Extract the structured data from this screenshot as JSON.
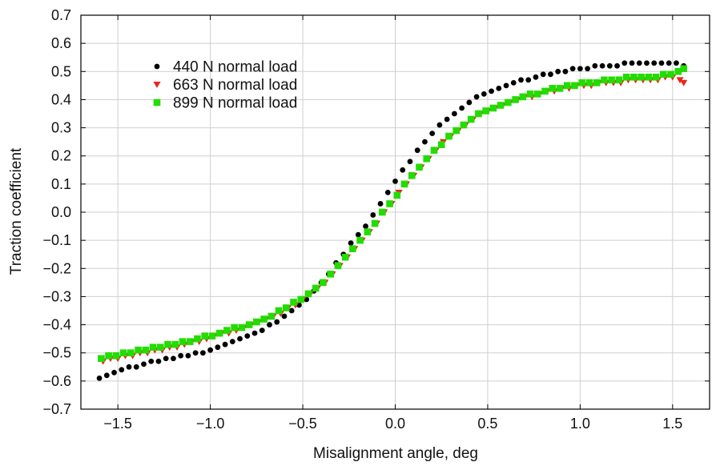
{
  "chart_data": {
    "type": "scatter",
    "title": "",
    "xlabel": "Misalignment angle, deg",
    "ylabel": "Traction coefficient",
    "xlim": [
      -1.7,
      1.7
    ],
    "ylim": [
      -0.7,
      0.7
    ],
    "xticks": [
      -1.5,
      -1.0,
      -0.5,
      0.0,
      0.5,
      1.0,
      1.5
    ],
    "xtick_labels": [
      "−1.5",
      "−1.0",
      "−0.5",
      "0.0",
      "0.5",
      "1.0",
      "1.5"
    ],
    "yticks": [
      -0.7,
      -0.6,
      -0.5,
      -0.4,
      -0.3,
      -0.2,
      -0.1,
      0.0,
      0.1,
      0.2,
      0.3,
      0.4,
      0.5,
      0.6,
      0.7
    ],
    "ytick_labels": [
      "−0.7",
      "−0.6",
      "−0.5",
      "−0.4",
      "−0.3",
      "−0.2",
      "−0.1",
      "0.0",
      "0.1",
      "0.2",
      "0.3",
      "0.4",
      "0.5",
      "0.6",
      "0.7"
    ],
    "grid": true,
    "legend_position": "upper-left",
    "series": [
      {
        "name": "440 N normal load",
        "marker": "circle",
        "color": "#000000",
        "x": [
          -1.6,
          -1.56,
          -1.52,
          -1.48,
          -1.44,
          -1.4,
          -1.36,
          -1.32,
          -1.28,
          -1.24,
          -1.2,
          -1.16,
          -1.12,
          -1.08,
          -1.04,
          -1.0,
          -0.96,
          -0.92,
          -0.88,
          -0.84,
          -0.8,
          -0.76,
          -0.72,
          -0.68,
          -0.64,
          -0.6,
          -0.56,
          -0.52,
          -0.48,
          -0.44,
          -0.4,
          -0.36,
          -0.32,
          -0.28,
          -0.24,
          -0.2,
          -0.16,
          -0.12,
          -0.08,
          -0.04,
          0.0,
          0.04,
          0.08,
          0.12,
          0.16,
          0.2,
          0.24,
          0.28,
          0.32,
          0.36,
          0.4,
          0.44,
          0.48,
          0.52,
          0.56,
          0.6,
          0.64,
          0.68,
          0.72,
          0.76,
          0.8,
          0.84,
          0.88,
          0.92,
          0.96,
          1.0,
          1.04,
          1.08,
          1.12,
          1.16,
          1.2,
          1.24,
          1.28,
          1.32,
          1.36,
          1.4,
          1.44,
          1.48,
          1.52,
          1.56
        ],
        "y": [
          -0.59,
          -0.58,
          -0.57,
          -0.56,
          -0.55,
          -0.55,
          -0.54,
          -0.53,
          -0.53,
          -0.52,
          -0.52,
          -0.51,
          -0.51,
          -0.5,
          -0.5,
          -0.49,
          -0.48,
          -0.47,
          -0.46,
          -0.45,
          -0.44,
          -0.43,
          -0.42,
          -0.4,
          -0.39,
          -0.37,
          -0.35,
          -0.33,
          -0.31,
          -0.28,
          -0.25,
          -0.22,
          -0.18,
          -0.15,
          -0.11,
          -0.08,
          -0.05,
          -0.01,
          0.03,
          0.07,
          0.11,
          0.15,
          0.18,
          0.22,
          0.25,
          0.28,
          0.31,
          0.33,
          0.35,
          0.37,
          0.39,
          0.41,
          0.42,
          0.43,
          0.44,
          0.45,
          0.46,
          0.47,
          0.47,
          0.48,
          0.49,
          0.49,
          0.5,
          0.5,
          0.51,
          0.51,
          0.51,
          0.52,
          0.52,
          0.52,
          0.52,
          0.53,
          0.53,
          0.53,
          0.53,
          0.53,
          0.53,
          0.53,
          0.53,
          0.52
        ]
      },
      {
        "name": "663 N normal load",
        "marker": "triangle-down",
        "color": "#e8281e",
        "x": [
          -1.58,
          -1.54,
          -1.5,
          -1.46,
          -1.42,
          -1.38,
          -1.34,
          -1.3,
          -1.26,
          -1.22,
          -1.18,
          -1.14,
          -1.1,
          -1.06,
          -1.02,
          -0.98,
          -0.94,
          -0.9,
          -0.86,
          -0.82,
          -0.78,
          -0.74,
          -0.7,
          -0.66,
          -0.62,
          -0.58,
          -0.54,
          -0.5,
          -0.46,
          -0.42,
          -0.38,
          -0.34,
          -0.3,
          -0.26,
          -0.22,
          -0.18,
          -0.14,
          -0.1,
          -0.06,
          -0.02,
          0.02,
          0.06,
          0.1,
          0.14,
          0.18,
          0.22,
          0.26,
          0.3,
          0.34,
          0.38,
          0.42,
          0.46,
          0.5,
          0.54,
          0.58,
          0.62,
          0.66,
          0.7,
          0.74,
          0.78,
          0.82,
          0.86,
          0.9,
          0.94,
          0.98,
          1.02,
          1.06,
          1.1,
          1.14,
          1.18,
          1.22,
          1.26,
          1.3,
          1.34,
          1.38,
          1.42,
          1.46,
          1.5,
          1.54,
          1.56
        ],
        "y": [
          -0.53,
          -0.52,
          -0.52,
          -0.51,
          -0.51,
          -0.5,
          -0.5,
          -0.49,
          -0.49,
          -0.48,
          -0.48,
          -0.47,
          -0.46,
          -0.46,
          -0.45,
          -0.44,
          -0.43,
          -0.43,
          -0.42,
          -0.41,
          -0.4,
          -0.39,
          -0.38,
          -0.37,
          -0.36,
          -0.34,
          -0.33,
          -0.31,
          -0.29,
          -0.27,
          -0.25,
          -0.22,
          -0.19,
          -0.16,
          -0.13,
          -0.1,
          -0.07,
          -0.04,
          0.0,
          0.03,
          0.07,
          0.1,
          0.13,
          0.16,
          0.19,
          0.22,
          0.25,
          0.27,
          0.29,
          0.31,
          0.33,
          0.35,
          0.36,
          0.37,
          0.38,
          0.39,
          0.4,
          0.41,
          0.41,
          0.42,
          0.43,
          0.43,
          0.44,
          0.44,
          0.45,
          0.45,
          0.45,
          0.46,
          0.46,
          0.46,
          0.46,
          0.47,
          0.47,
          0.47,
          0.47,
          0.47,
          0.48,
          0.48,
          0.47,
          0.46
        ]
      },
      {
        "name": "899 N normal load",
        "marker": "square",
        "color": "#22dd00",
        "x": [
          -1.59,
          -1.55,
          -1.51,
          -1.47,
          -1.43,
          -1.39,
          -1.35,
          -1.31,
          -1.27,
          -1.23,
          -1.19,
          -1.15,
          -1.11,
          -1.07,
          -1.03,
          -0.99,
          -0.95,
          -0.91,
          -0.87,
          -0.83,
          -0.79,
          -0.75,
          -0.71,
          -0.67,
          -0.63,
          -0.59,
          -0.55,
          -0.51,
          -0.47,
          -0.43,
          -0.39,
          -0.35,
          -0.31,
          -0.27,
          -0.23,
          -0.19,
          -0.15,
          -0.11,
          -0.07,
          -0.03,
          0.01,
          0.05,
          0.09,
          0.13,
          0.17,
          0.21,
          0.25,
          0.29,
          0.33,
          0.37,
          0.41,
          0.45,
          0.49,
          0.53,
          0.57,
          0.61,
          0.65,
          0.69,
          0.73,
          0.77,
          0.81,
          0.85,
          0.89,
          0.93,
          0.97,
          1.01,
          1.05,
          1.09,
          1.13,
          1.17,
          1.21,
          1.25,
          1.29,
          1.33,
          1.37,
          1.41,
          1.45,
          1.49,
          1.53,
          1.56
        ],
        "y": [
          -0.52,
          -0.51,
          -0.51,
          -0.5,
          -0.5,
          -0.49,
          -0.49,
          -0.48,
          -0.48,
          -0.47,
          -0.47,
          -0.46,
          -0.46,
          -0.45,
          -0.44,
          -0.44,
          -0.43,
          -0.42,
          -0.41,
          -0.41,
          -0.4,
          -0.39,
          -0.38,
          -0.37,
          -0.35,
          -0.34,
          -0.32,
          -0.31,
          -0.29,
          -0.27,
          -0.25,
          -0.22,
          -0.19,
          -0.16,
          -0.13,
          -0.1,
          -0.07,
          -0.04,
          0.0,
          0.03,
          0.06,
          0.1,
          0.13,
          0.16,
          0.19,
          0.22,
          0.24,
          0.27,
          0.29,
          0.31,
          0.33,
          0.35,
          0.36,
          0.37,
          0.38,
          0.39,
          0.4,
          0.41,
          0.42,
          0.42,
          0.43,
          0.44,
          0.44,
          0.45,
          0.45,
          0.46,
          0.46,
          0.46,
          0.47,
          0.47,
          0.47,
          0.48,
          0.48,
          0.48,
          0.48,
          0.48,
          0.49,
          0.49,
          0.5,
          0.51
        ]
      }
    ]
  }
}
